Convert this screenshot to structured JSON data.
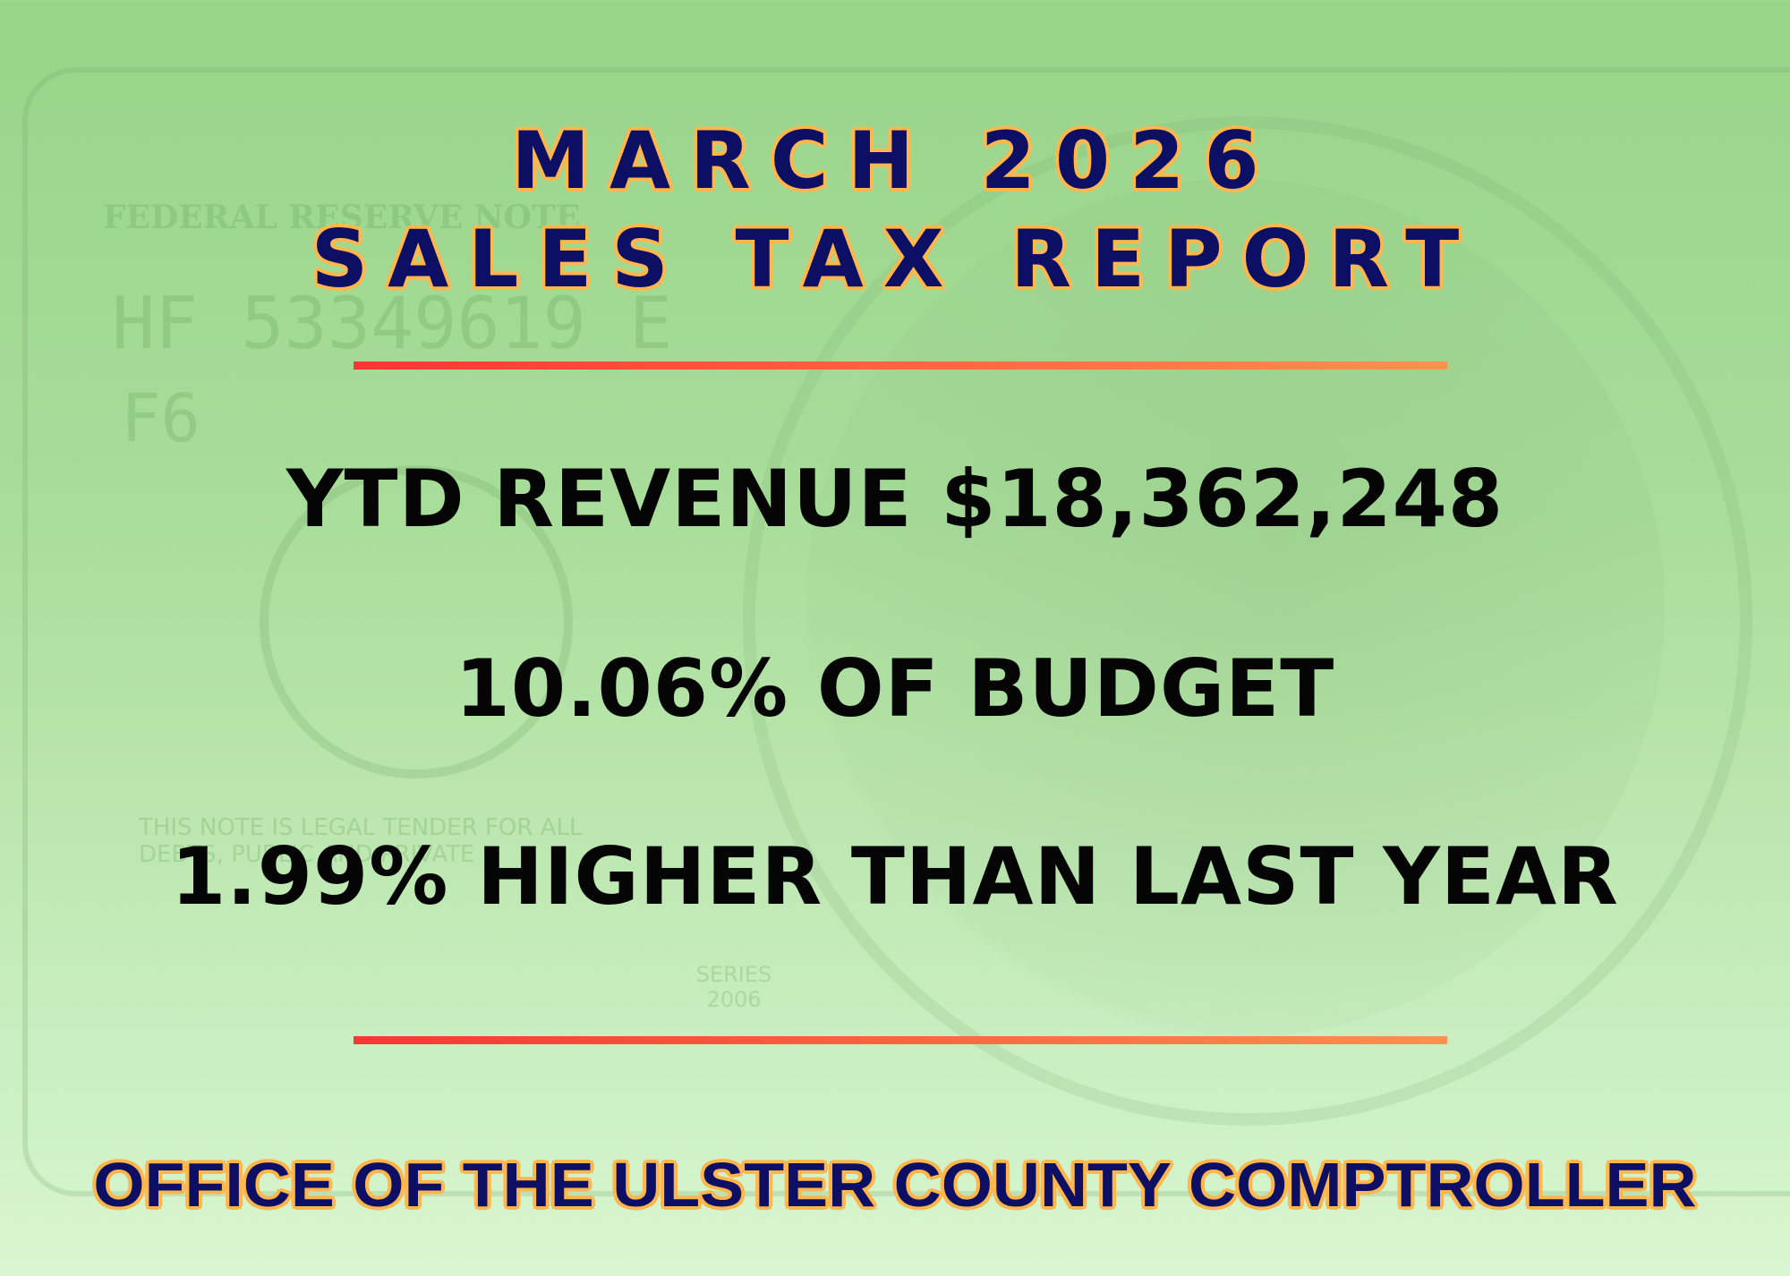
{
  "title": {
    "line1": "MARCH 2026",
    "line2": "SALES TAX REPORT"
  },
  "stats": {
    "ytd_revenue": "YTD REVENUE $18,362,248",
    "budget_pct": "10.06% OF BUDGET",
    "yoy_change": "1.99% HIGHER THAN LAST YEAR"
  },
  "footer": "OFFICE OF THE ULSTER COUNTY COMPTROLLER",
  "background": {
    "bill_serial": "HF 53349619 E",
    "bill_code": "F6",
    "bill_header": "FEDERAL RESERVE NOTE",
    "bill_tender": "THIS NOTE IS LEGAL TENDER FOR ALL DEBTS, PUBLIC AND PRIVATE",
    "bill_series": "SERIES 2006"
  },
  "colors": {
    "title": "#0c0f63",
    "outline": "#ffb74d",
    "rule_start": "#ff3535",
    "rule_end": "#ff914d",
    "stat_text": "#050505",
    "background_top": "#98d48a",
    "background_bottom": "#d9f6d2"
  }
}
